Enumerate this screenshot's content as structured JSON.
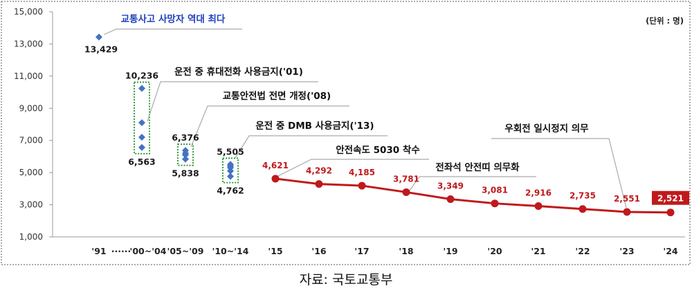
{
  "chart_data": {
    "type": "line",
    "unit_label": "(단위 : 명)",
    "ylim": [
      1000,
      15000
    ],
    "yticks": [
      "15,000",
      "13,000",
      "11,000",
      "9,000",
      "7,000",
      "5,000",
      "3,000",
      "1,000"
    ],
    "ytick_values": [
      15000,
      13000,
      11000,
      9000,
      7000,
      5000,
      3000,
      1000
    ],
    "categories": [
      "'91",
      "'00~'04",
      "'05~'09",
      "'10~'14",
      "'15",
      "'16",
      "'17",
      "'18",
      "'19",
      "'20",
      "'21",
      "'22",
      "'23",
      "'24"
    ],
    "range_points": [
      {
        "category": "'91",
        "values": [
          13429
        ],
        "labels": [
          "13,429"
        ]
      },
      {
        "category": "'00~'04",
        "values": [
          10236,
          8100,
          7200,
          6563
        ],
        "labels": [
          "10,236",
          "6,563"
        ]
      },
      {
        "category": "'05~'09",
        "values": [
          6376,
          6200,
          6100,
          5838
        ],
        "labels": [
          "6,376",
          "5,838"
        ]
      },
      {
        "category": "'10~'14",
        "values": [
          5505,
          5400,
          5300,
          5100,
          4762
        ],
        "labels": [
          "5,505",
          "4,762"
        ]
      }
    ],
    "series": [
      {
        "x": [
          "'15",
          "'16",
          "'17",
          "'18",
          "'19",
          "'20",
          "'21",
          "'22",
          "'23",
          "'24"
        ],
        "values": [
          4621,
          4292,
          4185,
          3781,
          3349,
          3081,
          2916,
          2735,
          2551,
          2521
        ],
        "labels": [
          "4,621",
          "4,292",
          "4,185",
          "3,781",
          "3,349",
          "3,081",
          "2,916",
          "2,735",
          "2,551",
          "2,521"
        ],
        "color": "#c0191c"
      }
    ],
    "annotations": [
      "교통사고 사망자 역대 최다",
      "운전 중 휴대전화 사용금지('01)",
      "교통안전법 전면 개정('08)",
      "운전 중 DMB 사용금지('13)",
      "안전속도 5030 착수",
      "전좌석 안전띠 의무화",
      "우회전 일시정지 의무"
    ],
    "x_break_label": "······",
    "grid": false,
    "colors": {
      "range_marker": "#4472c4",
      "line": "#c0191c",
      "highlight_box": "#c0191c",
      "dotted_box": "#2e9a3c"
    }
  },
  "source": "자료:  국토교통부"
}
